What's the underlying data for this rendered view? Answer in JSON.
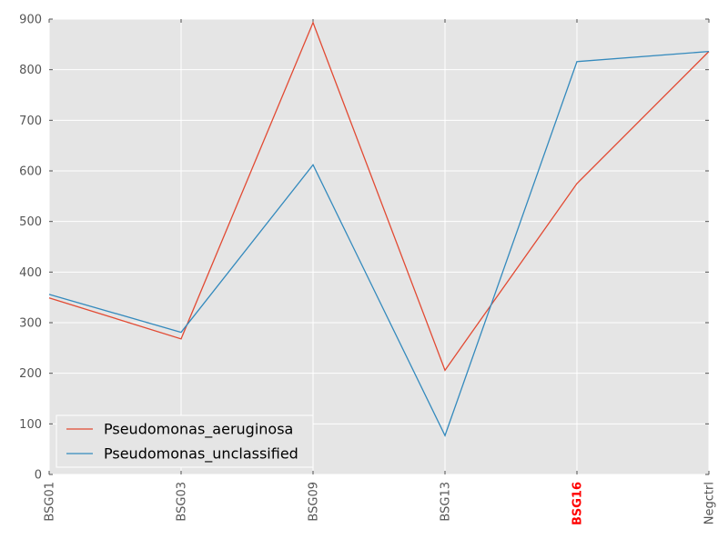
{
  "chart_data": {
    "type": "line",
    "categories": [
      "BSG01",
      "BSG03",
      "BSG09",
      "BSG13",
      "BSG16",
      "Negctrl"
    ],
    "highlighted_category": "BSG16",
    "series": [
      {
        "name": "Pseudomonas_aeruginosa",
        "color": "#E24A33",
        "values": [
          349,
          268,
          893,
          206,
          575,
          836
        ]
      },
      {
        "name": "Pseudomonas_unclassified",
        "color": "#348ABD",
        "values": [
          356,
          281,
          612,
          77,
          816,
          836
        ]
      }
    ],
    "ylim": [
      0,
      900
    ],
    "yticks": [
      0,
      100,
      200,
      300,
      400,
      500,
      600,
      700,
      800,
      900
    ],
    "grid": true,
    "legend_position": "lower-left",
    "colors": {
      "plot_background": "#E5E5E5",
      "grid": "#FFFFFF",
      "tick_text": "#555555",
      "highlight_tick": "#FF0000"
    }
  }
}
